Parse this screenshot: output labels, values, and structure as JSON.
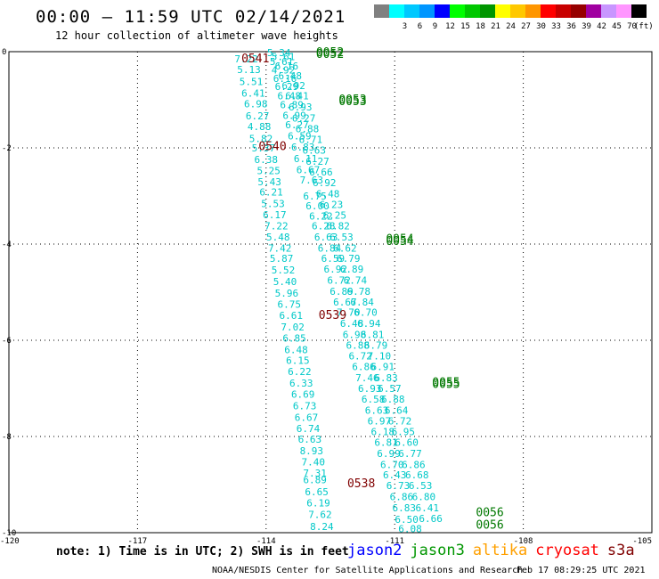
{
  "header": {
    "title": "00:00 — 11:59 UTC 02/14/2021",
    "subtitle": "12 hour collection of altimeter wave heights"
  },
  "color_scale": {
    "unit": "(ft)",
    "items": [
      {
        "label": "",
        "color": "#808080"
      },
      {
        "label": "3",
        "color": "#00ffff"
      },
      {
        "label": "6",
        "color": "#00c8ff"
      },
      {
        "label": "9",
        "color": "#0096ff"
      },
      {
        "label": "12",
        "color": "#0000ff"
      },
      {
        "label": "15",
        "color": "#00ff00"
      },
      {
        "label": "18",
        "color": "#00c800"
      },
      {
        "label": "21",
        "color": "#009600"
      },
      {
        "label": "24",
        "color": "#ffff00"
      },
      {
        "label": "27",
        "color": "#ffc800"
      },
      {
        "label": "30",
        "color": "#ff9600"
      },
      {
        "label": "33",
        "color": "#ff0000"
      },
      {
        "label": "36",
        "color": "#c80000"
      },
      {
        "label": "39",
        "color": "#960000"
      },
      {
        "label": "42",
        "color": "#a000a0"
      },
      {
        "label": "45",
        "color": "#c896ff"
      },
      {
        "label": "70",
        "color": "#ff96ff"
      },
      {
        "label": "",
        "color": "#000000"
      }
    ]
  },
  "chart_data": {
    "type": "scatter",
    "xlim": [
      -120,
      -105
    ],
    "ylim": [
      -10,
      0
    ],
    "x_ticks": [
      -120,
      -117,
      -114,
      -111,
      -108,
      -105
    ],
    "y_ticks": [
      0,
      -2,
      -4,
      -6,
      -8,
      -10
    ],
    "grid": true,
    "series": [
      {
        "name": "cryosat",
        "color": "#00c8c8",
        "points": [
          {
            "x": -114.46,
            "y": -0.15,
            "v": "7.22"
          },
          {
            "x": -114.4,
            "y": -0.37,
            "v": "5.13"
          },
          {
            "x": -114.35,
            "y": -0.62,
            "v": "5.51"
          },
          {
            "x": -114.3,
            "y": -0.86,
            "v": "6.41"
          },
          {
            "x": -114.24,
            "y": -1.08,
            "v": "6.98"
          },
          {
            "x": -114.2,
            "y": -1.33,
            "v": "6.27"
          },
          {
            "x": -114.16,
            "y": -1.56,
            "v": "4.88"
          },
          {
            "x": -114.12,
            "y": -1.81,
            "v": "5.82"
          },
          {
            "x": -114.06,
            "y": -2.0,
            "v": "5.37"
          },
          {
            "x": -114.0,
            "y": -2.24,
            "v": "6.38"
          },
          {
            "x": -113.94,
            "y": -2.47,
            "v": "5.25"
          },
          {
            "x": -113.92,
            "y": -2.7,
            "v": "5.43"
          },
          {
            "x": -113.88,
            "y": -2.92,
            "v": "6.21"
          },
          {
            "x": -113.84,
            "y": -3.16,
            "v": "5.53"
          },
          {
            "x": -113.8,
            "y": -3.39,
            "v": "6.17"
          },
          {
            "x": -113.76,
            "y": -3.62,
            "v": "7.22"
          },
          {
            "x": -113.72,
            "y": -3.85,
            "v": "5.48"
          },
          {
            "x": -113.68,
            "y": -4.08,
            "v": "7.42"
          },
          {
            "x": -113.64,
            "y": -4.3,
            "v": "5.87"
          },
          {
            "x": -113.6,
            "y": -4.54,
            "v": "5.52"
          },
          {
            "x": -113.56,
            "y": -4.78,
            "v": "5.40"
          },
          {
            "x": -113.52,
            "y": -5.02,
            "v": "5.96"
          },
          {
            "x": -113.46,
            "y": -5.25,
            "v": "6.75"
          },
          {
            "x": -113.42,
            "y": -5.48,
            "v": "6.61"
          },
          {
            "x": -113.38,
            "y": -5.72,
            "v": "7.02"
          },
          {
            "x": -113.34,
            "y": -5.95,
            "v": "6.85"
          },
          {
            "x": -113.3,
            "y": -6.19,
            "v": "6.48"
          },
          {
            "x": -113.26,
            "y": -6.42,
            "v": "6.15"
          },
          {
            "x": -113.22,
            "y": -6.65,
            "v": "6.22"
          },
          {
            "x": -113.18,
            "y": -6.89,
            "v": "6.33"
          },
          {
            "x": -113.14,
            "y": -7.12,
            "v": "6.69"
          },
          {
            "x": -113.1,
            "y": -7.36,
            "v": "6.73"
          },
          {
            "x": -113.06,
            "y": -7.6,
            "v": "6.67"
          },
          {
            "x": -113.02,
            "y": -7.83,
            "v": "6.74"
          },
          {
            "x": -112.98,
            "y": -8.06,
            "v": "6.63"
          },
          {
            "x": -112.94,
            "y": -8.3,
            "v": "8.93"
          },
          {
            "x": -112.9,
            "y": -8.53,
            "v": "7.40"
          },
          {
            "x": -112.86,
            "y": -8.76,
            "v": "7.31"
          },
          {
            "x": -112.86,
            "y": -8.9,
            "v": "6.89"
          },
          {
            "x": -112.82,
            "y": -9.15,
            "v": "6.65"
          },
          {
            "x": -112.78,
            "y": -9.38,
            "v": "6.19"
          },
          {
            "x": -112.74,
            "y": -9.62,
            "v": "7.62"
          },
          {
            "x": -112.7,
            "y": -9.87,
            "v": "8.24"
          }
        ]
      },
      {
        "name": "jason3",
        "color": "#00c8c8",
        "points": [
          {
            "x": -113.7,
            "y": -0.02,
            "v": "5.34"
          },
          {
            "x": -113.64,
            "y": -0.2,
            "v": "5.61"
          },
          {
            "x": -113.6,
            "y": -0.38,
            "v": "4.92"
          },
          {
            "x": -113.56,
            "y": -0.56,
            "v": "6.16"
          },
          {
            "x": -113.52,
            "y": -0.72,
            "v": "6.29"
          },
          {
            "x": -113.46,
            "y": -0.92,
            "v": "6.48"
          },
          {
            "x": -113.4,
            "y": -1.1,
            "v": "6.89"
          },
          {
            "x": -113.34,
            "y": -1.32,
            "v": "6.99"
          },
          {
            "x": -113.28,
            "y": -1.52,
            "v": "6.27"
          },
          {
            "x": -113.22,
            "y": -1.75,
            "v": "6.59"
          },
          {
            "x": -113.14,
            "y": -1.98,
            "v": "6.83"
          },
          {
            "x": -113.08,
            "y": -2.22,
            "v": "6.11"
          },
          {
            "x": -113.02,
            "y": -2.45,
            "v": "6.67"
          },
          {
            "x": -112.94,
            "y": -2.67,
            "v": "7.63"
          },
          {
            "x": -112.86,
            "y": -3.0,
            "v": "6.75"
          },
          {
            "x": -112.8,
            "y": -3.2,
            "v": "6.00"
          },
          {
            "x": -112.72,
            "y": -3.42,
            "v": "6.22"
          },
          {
            "x": -112.66,
            "y": -3.62,
            "v": "6.28"
          },
          {
            "x": -112.6,
            "y": -3.85,
            "v": "6.63"
          },
          {
            "x": -112.52,
            "y": -4.08,
            "v": "6.84"
          },
          {
            "x": -112.44,
            "y": -4.3,
            "v": "6.59"
          },
          {
            "x": -112.38,
            "y": -4.52,
            "v": "6.92"
          },
          {
            "x": -112.3,
            "y": -4.75,
            "v": "6.72"
          },
          {
            "x": -112.24,
            "y": -4.98,
            "v": "6.89"
          },
          {
            "x": -112.16,
            "y": -5.2,
            "v": "6.67"
          },
          {
            "x": -112.08,
            "y": -5.42,
            "v": "7.70"
          },
          {
            "x": -112.0,
            "y": -5.65,
            "v": "6.48"
          },
          {
            "x": -111.94,
            "y": -5.88,
            "v": "6.98"
          },
          {
            "x": -111.86,
            "y": -6.1,
            "v": "6.88"
          },
          {
            "x": -111.8,
            "y": -6.32,
            "v": "6.72"
          },
          {
            "x": -111.72,
            "y": -6.55,
            "v": "6.86"
          },
          {
            "x": -111.64,
            "y": -6.78,
            "v": "7.46"
          },
          {
            "x": -111.58,
            "y": -7.0,
            "v": "6.93"
          },
          {
            "x": -111.5,
            "y": -7.22,
            "v": "6.58"
          },
          {
            "x": -111.42,
            "y": -7.45,
            "v": "6.63"
          },
          {
            "x": -111.36,
            "y": -7.68,
            "v": "6.97"
          },
          {
            "x": -111.28,
            "y": -7.9,
            "v": "6.18"
          },
          {
            "x": -111.2,
            "y": -8.12,
            "v": "6.81"
          },
          {
            "x": -111.14,
            "y": -8.35,
            "v": "6.99"
          },
          {
            "x": -111.06,
            "y": -8.58,
            "v": "6.70"
          },
          {
            "x": -111.0,
            "y": -8.8,
            "v": "6.43"
          },
          {
            "x": -110.92,
            "y": -9.02,
            "v": "6.73"
          },
          {
            "x": -110.84,
            "y": -9.25,
            "v": "6.86"
          },
          {
            "x": -110.78,
            "y": -9.48,
            "v": "6.83"
          },
          {
            "x": -110.72,
            "y": -9.72,
            "v": "6.50"
          },
          {
            "x": -110.64,
            "y": -9.92,
            "v": "6.08"
          }
        ]
      },
      {
        "name": "jason3-b",
        "color": "#00c8c8",
        "points": [
          {
            "x": -113.6,
            "y": -0.1,
            "v": "5.61"
          },
          {
            "x": -113.52,
            "y": -0.3,
            "v": "6.16"
          },
          {
            "x": -113.44,
            "y": -0.5,
            "v": "6.48"
          },
          {
            "x": -113.36,
            "y": -0.7,
            "v": "6.92"
          },
          {
            "x": -113.28,
            "y": -0.92,
            "v": "6.41"
          },
          {
            "x": -113.2,
            "y": -1.15,
            "v": "6.93"
          },
          {
            "x": -113.12,
            "y": -1.38,
            "v": "6.27"
          },
          {
            "x": -113.04,
            "y": -1.6,
            "v": "6.88"
          },
          {
            "x": -112.96,
            "y": -1.82,
            "v": "6.71"
          },
          {
            "x": -112.88,
            "y": -2.05,
            "v": "6.63"
          },
          {
            "x": -112.8,
            "y": -2.28,
            "v": "6.27"
          },
          {
            "x": -112.72,
            "y": -2.5,
            "v": "6.66"
          },
          {
            "x": -112.64,
            "y": -2.72,
            "v": "6.92"
          },
          {
            "x": -112.56,
            "y": -2.95,
            "v": "6.48"
          },
          {
            "x": -112.48,
            "y": -3.18,
            "v": "6.23"
          },
          {
            "x": -112.4,
            "y": -3.4,
            "v": "6.25"
          },
          {
            "x": -112.32,
            "y": -3.62,
            "v": "6.82"
          },
          {
            "x": -112.24,
            "y": -3.85,
            "v": "6.53"
          },
          {
            "x": -112.16,
            "y": -4.08,
            "v": "6.62"
          },
          {
            "x": -112.08,
            "y": -4.3,
            "v": "6.79"
          },
          {
            "x": -112.0,
            "y": -4.52,
            "v": "6.89"
          },
          {
            "x": -111.92,
            "y": -4.75,
            "v": "6.74"
          },
          {
            "x": -111.84,
            "y": -4.98,
            "v": "6.78"
          },
          {
            "x": -111.76,
            "y": -5.2,
            "v": "6.84"
          },
          {
            "x": -111.68,
            "y": -5.42,
            "v": "6.70"
          },
          {
            "x": -111.6,
            "y": -5.65,
            "v": "6.94"
          },
          {
            "x": -111.52,
            "y": -5.88,
            "v": "6.81"
          },
          {
            "x": -111.44,
            "y": -6.1,
            "v": "6.79"
          },
          {
            "x": -111.36,
            "y": -6.32,
            "v": "7.10"
          },
          {
            "x": -111.28,
            "y": -6.55,
            "v": "6.91"
          },
          {
            "x": -111.2,
            "y": -6.78,
            "v": "6.83"
          },
          {
            "x": -111.12,
            "y": -7.0,
            "v": "6.57"
          },
          {
            "x": -111.04,
            "y": -7.22,
            "v": "6.88"
          },
          {
            "x": -110.96,
            "y": -7.45,
            "v": "6.64"
          },
          {
            "x": -110.88,
            "y": -7.68,
            "v": "6.72"
          },
          {
            "x": -110.8,
            "y": -7.9,
            "v": "6.95"
          },
          {
            "x": -110.72,
            "y": -8.12,
            "v": "6.60"
          },
          {
            "x": -110.64,
            "y": -8.35,
            "v": "6.77"
          },
          {
            "x": -110.56,
            "y": -8.58,
            "v": "6.86"
          },
          {
            "x": -110.48,
            "y": -8.8,
            "v": "6.68"
          },
          {
            "x": -110.4,
            "y": -9.02,
            "v": "6.53"
          },
          {
            "x": -110.32,
            "y": -9.25,
            "v": "6.80"
          },
          {
            "x": -110.24,
            "y": -9.48,
            "v": "6.41"
          },
          {
            "x": -110.16,
            "y": -9.7,
            "v": "6.66"
          }
        ]
      }
    ],
    "time_labels": [
      {
        "x": -114.25,
        "y": -0.15,
        "text": "0541",
        "color": "#800000"
      },
      {
        "x": -113.85,
        "y": -1.97,
        "text": "0540",
        "color": "#800000"
      },
      {
        "x": -112.45,
        "y": -5.48,
        "text": "0539",
        "color": "#800000"
      },
      {
        "x": -111.78,
        "y": -8.98,
        "text": "0538",
        "color": "#800000"
      },
      {
        "x": -112.51,
        "y": -0.02,
        "text": "0052",
        "color": "#007800"
      },
      {
        "x": -112.51,
        "y": -0.06,
        "text": "0052",
        "color": "#007800"
      },
      {
        "x": -111.98,
        "y": -1.0,
        "text": "0053",
        "color": "#007800"
      },
      {
        "x": -111.98,
        "y": -1.04,
        "text": "0053",
        "color": "#007800"
      },
      {
        "x": -110.88,
        "y": -3.9,
        "text": "0054",
        "color": "#007800"
      },
      {
        "x": -110.88,
        "y": -3.94,
        "text": "0054",
        "color": "#007800"
      },
      {
        "x": -109.8,
        "y": -6.88,
        "text": "0055",
        "color": "#007800"
      },
      {
        "x": -109.8,
        "y": -6.92,
        "text": "0055",
        "color": "#007800"
      },
      {
        "x": -108.78,
        "y": -9.58,
        "text": "0056",
        "color": "#007800"
      },
      {
        "x": -108.78,
        "y": -9.84,
        "text": "0056",
        "color": "#007800"
      }
    ]
  },
  "footer": {
    "note": "note: 1) Time is in UTC; 2) SWH is in feet",
    "missions": [
      {
        "label": "jason2",
        "color": "#0000ff"
      },
      {
        "label": "jason3",
        "color": "#009600"
      },
      {
        "label": "altika",
        "color": "#ffa000"
      },
      {
        "label": "cryosat",
        "color": "#ff0000"
      },
      {
        "label": "s3a",
        "color": "#800000"
      }
    ],
    "credit": "NOAA/NESDIS Center for Satellite Applications and Research",
    "timestamp": "Feb 17 08:29:25 UTC 2021"
  }
}
